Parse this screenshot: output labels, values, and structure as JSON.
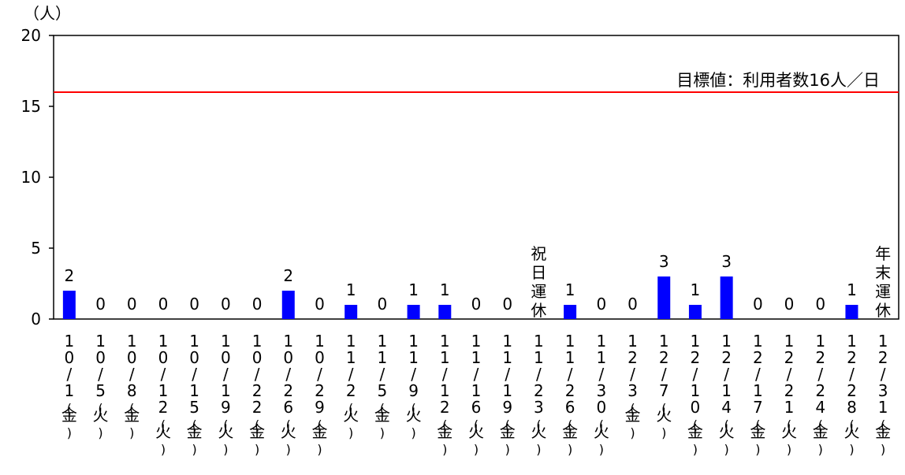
{
  "chart_data": {
    "type": "bar",
    "ylabel": "（人）",
    "ylim": [
      0,
      20
    ],
    "yticks": [
      "0",
      "5",
      "10",
      "15",
      "20"
    ],
    "grid": false,
    "legend": "none",
    "bar_color": "#0000ff",
    "target_color": "#ff0000",
    "target": {
      "value": 16,
      "label": "目標値：利用者数16人／日"
    },
    "categories": [
      "10/1(金)",
      "10/5(火)",
      "10/8(金)",
      "10/12(火)",
      "10/15(金)",
      "10/19(火)",
      "10/22(金)",
      "10/26(火)",
      "10/29(金)",
      "11/2(火)",
      "11/5(金)",
      "11/9(火)",
      "11/12(金)",
      "11/16(火)",
      "11/19(金)",
      "11/23(火)",
      "11/26(金)",
      "11/30(火)",
      "12/3(金)",
      "12/7(火)",
      "12/10(金)",
      "12/14(火)",
      "12/17(金)",
      "12/21(火)",
      "12/24(金)",
      "12/28(火)",
      "12/31(金)"
    ],
    "values": [
      2,
      0,
      0,
      0,
      0,
      0,
      0,
      2,
      0,
      1,
      0,
      1,
      1,
      0,
      0,
      null,
      1,
      0,
      0,
      3,
      1,
      3,
      0,
      0,
      0,
      1,
      null
    ],
    "value_labels": [
      "2",
      "0",
      "0",
      "0",
      "0",
      "0",
      "0",
      "2",
      "0",
      "1",
      "0",
      "1",
      "1",
      "0",
      "0",
      "祝日運休",
      "1",
      "0",
      "0",
      "3",
      "1",
      "3",
      "0",
      "0",
      "0",
      "1",
      "年末運休"
    ]
  }
}
